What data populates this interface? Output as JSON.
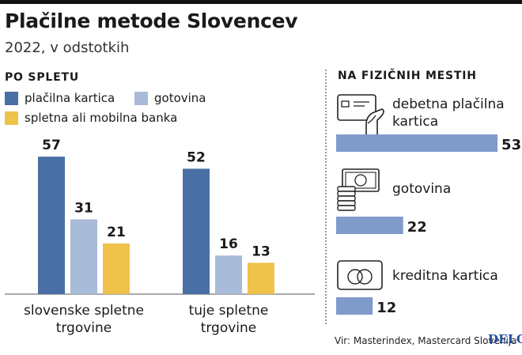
{
  "title": "Plačilne metode Slovencev",
  "subtitle": "2022, v odstotkih",
  "colors": {
    "card": "#4a6fa5",
    "cash": "#a8bbd8",
    "bank": "#eec24b",
    "physical": "#7f9bc9"
  },
  "online": {
    "heading": "PO SPLETU",
    "legend": [
      "plačilna kartica",
      "gotovina",
      "spletna ali mobilna banka"
    ]
  },
  "physical": {
    "heading": "NA FIZIČNIH MESTIH",
    "items": [
      {
        "label_line1": "debetna plačilna",
        "label_line2": "kartica",
        "icon": "card-in-hand-icon"
      },
      {
        "label_line1": "gotovina",
        "label_line2": "",
        "icon": "cash-icon"
      },
      {
        "label_line1": "kreditna kartica",
        "label_line2": "",
        "icon": "credit-card-icon"
      }
    ]
  },
  "chart_data": [
    {
      "type": "bar",
      "title": "PO SPLETU",
      "categories": [
        "slovenske spletne trgovine",
        "tuje spletne trgovine"
      ],
      "category_lines": [
        [
          "slovenske spletne",
          "trgovine"
        ],
        [
          "tuje spletne",
          "trgovine"
        ]
      ],
      "series": [
        {
          "name": "plačilna kartica",
          "values": [
            57,
            52
          ]
        },
        {
          "name": "gotovina",
          "values": [
            31,
            16
          ]
        },
        {
          "name": "spletna ali mobilna banka",
          "values": [
            21,
            13
          ]
        }
      ],
      "ylim": [
        0,
        60
      ],
      "grid": false,
      "legend_position": "top-left"
    },
    {
      "type": "bar",
      "orientation": "horizontal",
      "title": "NA FIZIČNIH MESTIH",
      "categories": [
        "debetna plačilna kartica",
        "gotovina",
        "kreditna kartica"
      ],
      "values": [
        53,
        22,
        12
      ],
      "xlim": [
        0,
        60
      ],
      "grid": false
    }
  ],
  "source": "Vir: Masterindex, Mastercard Slovenija",
  "logo": "DELO"
}
